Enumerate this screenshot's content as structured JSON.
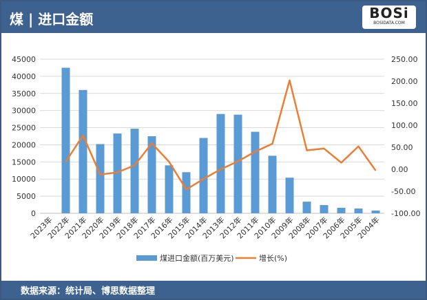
{
  "header": {
    "title": "煤 | 进口金额",
    "logo_text": "BOSi",
    "logo_sub": "BOSIDATA.COM"
  },
  "footer": {
    "source": "数据来源：统计局、博思数据整理"
  },
  "colors": {
    "bar": "#5b9bd5",
    "line": "#ed7d31",
    "header": "#3d6290"
  },
  "chart_data": {
    "type": "bar+line",
    "categories": [
      "2023年",
      "2022年",
      "2021年",
      "2020年",
      "2019年",
      "2018年",
      "2017年",
      "2016年",
      "2015年",
      "2014年",
      "2013年",
      "2012年",
      "2011年",
      "2010年",
      "2009年",
      "2008年",
      "2007年",
      "2006年",
      "2005年",
      "2004年"
    ],
    "series": [
      {
        "name": "煤进口金额(百万美元)",
        "type": "bar",
        "axis": "left",
        "values": [
          null,
          42500,
          36000,
          20200,
          23300,
          24700,
          22500,
          14000,
          12000,
          22000,
          29000,
          28800,
          23800,
          16800,
          10400,
          3400,
          2400,
          1600,
          1400,
          800
        ]
      },
      {
        "name": "增长(%)",
        "type": "line",
        "axis": "right",
        "values": [
          null,
          17,
          77,
          -12,
          -7,
          9,
          59,
          17,
          -46,
          -22,
          0,
          18,
          40,
          58,
          202,
          43,
          47,
          15,
          52,
          -3
        ]
      }
    ],
    "left_axis": {
      "ylim": [
        0,
        45000
      ],
      "ticks": [
        "0",
        "5000",
        "10000",
        "15000",
        "20000",
        "25000",
        "30000",
        "35000",
        "40000",
        "45000"
      ]
    },
    "right_axis": {
      "ylim": [
        -100,
        250
      ],
      "ticks": [
        "-100.00",
        "-50.00",
        "0.00",
        "50.00",
        "100.00",
        "150.00",
        "200.00",
        "250.00"
      ]
    },
    "grid": true,
    "legend": "bottom"
  }
}
